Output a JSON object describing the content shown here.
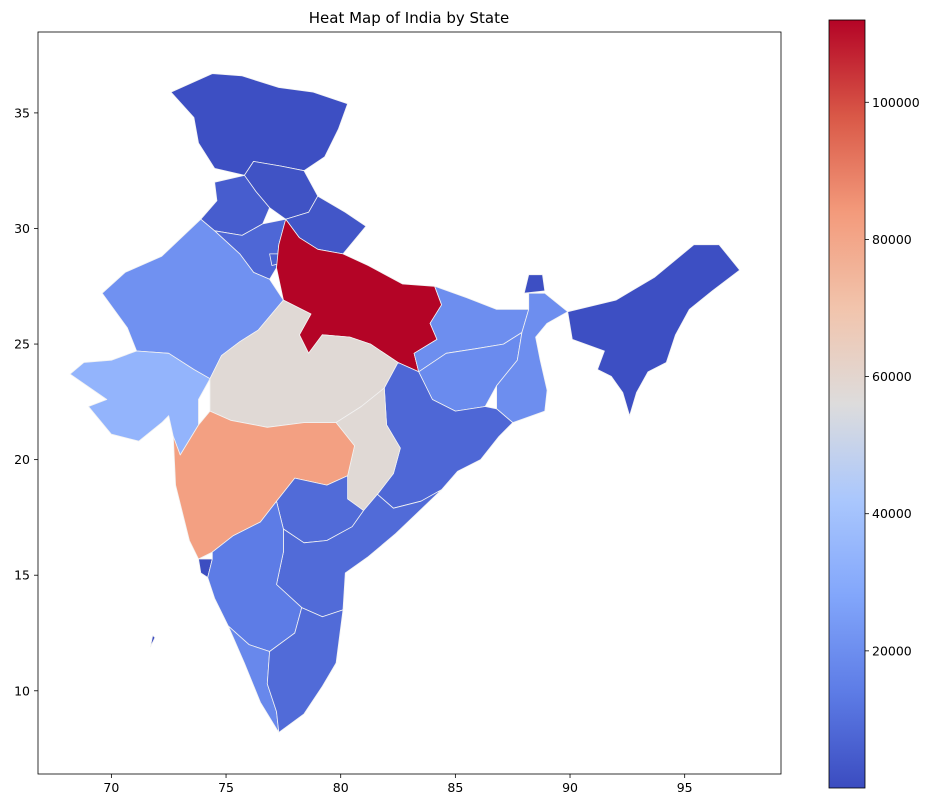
{
  "chart_data": {
    "type": "heatmap",
    "title": "Heat Map of India by State",
    "xlabel": "",
    "ylabel": "",
    "xlim": [
      66.8,
      99.2
    ],
    "ylim": [
      6.4,
      38.5
    ],
    "x_ticks": [
      "70",
      "75",
      "80",
      "85",
      "90",
      "95"
    ],
    "y_ticks": [
      "10",
      "15",
      "20",
      "25",
      "30",
      "35"
    ],
    "colorbar": {
      "colormap": "coolwarm",
      "min": 0,
      "max": 112000,
      "ticks": [
        "20000",
        "40000",
        "60000",
        "80000",
        "100000"
      ]
    },
    "regions": [
      {
        "name": "Jammu & Kashmir",
        "value": 1000
      },
      {
        "name": "Himachal Pradesh",
        "value": 2000
      },
      {
        "name": "Punjab",
        "value": 5000
      },
      {
        "name": "Uttarakhand",
        "value": 3000
      },
      {
        "name": "Haryana",
        "value": 8000
      },
      {
        "name": "Delhi",
        "value": 6000
      },
      {
        "name": "Uttar Pradesh",
        "value": 112000
      },
      {
        "name": "Rajasthan",
        "value": 21000
      },
      {
        "name": "Gujarat",
        "value": 34000
      },
      {
        "name": "Madhya Pradesh",
        "value": 58000
      },
      {
        "name": "Bihar",
        "value": 20000
      },
      {
        "name": "Jharkhand",
        "value": 19000
      },
      {
        "name": "West Bengal",
        "value": 20000
      },
      {
        "name": "Sikkim",
        "value": 1000
      },
      {
        "name": "Northeast States",
        "value": 1000
      },
      {
        "name": "Odisha",
        "value": 8000
      },
      {
        "name": "Chhattisgarh",
        "value": 58000
      },
      {
        "name": "Maharashtra",
        "value": 82000
      },
      {
        "name": "Goa",
        "value": 500
      },
      {
        "name": "Telangana",
        "value": 9000
      },
      {
        "name": "Andhra Pradesh",
        "value": 9000
      },
      {
        "name": "Karnataka",
        "value": 14000
      },
      {
        "name": "Kerala",
        "value": 18000
      },
      {
        "name": "Tamil Nadu",
        "value": 9000
      },
      {
        "name": "Lakshadweep",
        "value": 0
      }
    ]
  }
}
